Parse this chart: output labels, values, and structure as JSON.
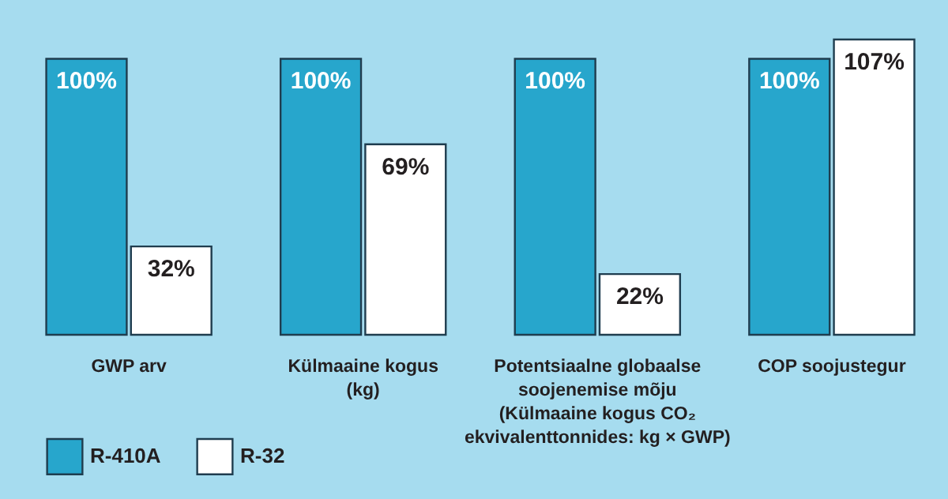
{
  "chart_data": {
    "type": "bar",
    "categories": [
      "GWP arv",
      "Külmaaine kogus\n(kg)",
      "Potentsiaalne globaalse\nsoojenemise mõju\n(Külmaaine kogus CO₂\nekvivalenttonnides: kg × GWP)",
      "COP soojustegur"
    ],
    "series": [
      {
        "name": "R-410A",
        "color": "#27a6cc",
        "values": [
          100,
          100,
          100,
          100
        ],
        "value_labels": [
          "100%",
          "100%",
          "100%",
          "100%"
        ]
      },
      {
        "name": "R-32",
        "color": "#ffffff",
        "values": [
          32,
          69,
          22,
          107
        ],
        "value_labels": [
          "32%",
          "69%",
          "22%",
          "107%"
        ]
      }
    ],
    "legend": "bottom left"
  }
}
